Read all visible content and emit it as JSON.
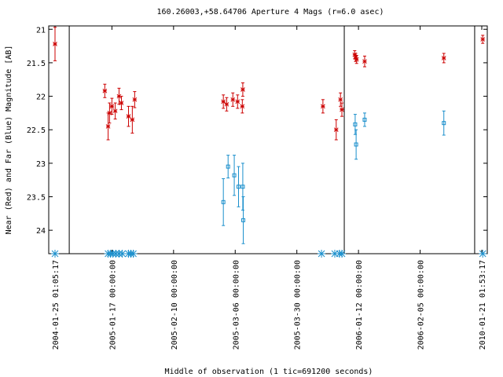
{
  "chart_data": {
    "type": "scatter",
    "title": "160.26003,+58.64706   Aperture 4 Mags (r=6.0 asec)",
    "xlabel": "Middle of observation (1 tic=691200 seconds)",
    "ylabel": "Near (Red) and Far (Blue) Magnitude [AB]",
    "ylim": [
      24.35,
      20.95
    ],
    "y_inverted": true,
    "yticks": [
      21,
      21.5,
      22,
      22.5,
      23,
      23.5,
      24
    ],
    "ytick_labels": [
      "21",
      "21.5",
      "22",
      "22.5",
      "23",
      "23.5",
      "24"
    ],
    "xtick_labels": [
      "2004-01-25 01:05:17",
      "2005-01-17 00:00:00",
      "2005-02-10 00:00:00",
      "2005-03-06 00:00:00",
      "2005-03-30 00:00:00",
      "2006-01-12 00:00:00",
      "2006-02-05 00:00:00",
      "2010-01-21 01:53:17"
    ],
    "xtick_index": [
      0,
      1.2,
      2.5,
      3.8,
      5.1,
      6.4,
      7.7,
      9.0
    ],
    "panel_breaks": [
      0.3,
      6.1,
      8.85
    ],
    "grid": false,
    "legend": "none",
    "colors": {
      "near": "#cc0000",
      "far": "#1a8fcc",
      "frame": "#000000"
    },
    "series": [
      {
        "name": "Near (Red)",
        "marker": "x",
        "points": [
          {
            "x": 0.0,
            "y": 21.22,
            "err": 0.25
          },
          {
            "x": 1.05,
            "y": 21.92,
            "err": 0.1
          },
          {
            "x": 1.12,
            "y": 22.45,
            "err": 0.2
          },
          {
            "x": 1.15,
            "y": 22.25,
            "err": 0.15
          },
          {
            "x": 1.2,
            "y": 22.15,
            "err": 0.12
          },
          {
            "x": 1.27,
            "y": 22.22,
            "err": 0.12
          },
          {
            "x": 1.35,
            "y": 22.0,
            "err": 0.12
          },
          {
            "x": 1.4,
            "y": 22.1,
            "err": 0.1
          },
          {
            "x": 1.55,
            "y": 22.3,
            "err": 0.15
          },
          {
            "x": 1.63,
            "y": 22.35,
            "err": 0.2
          },
          {
            "x": 1.68,
            "y": 22.05,
            "err": 0.12
          },
          {
            "x": 3.55,
            "y": 22.08,
            "err": 0.1
          },
          {
            "x": 3.62,
            "y": 22.12,
            "err": 0.1
          },
          {
            "x": 3.75,
            "y": 22.05,
            "err": 0.1
          },
          {
            "x": 3.85,
            "y": 22.08,
            "err": 0.1
          },
          {
            "x": 3.95,
            "y": 22.15,
            "err": 0.1
          },
          {
            "x": 3.96,
            "y": 21.9,
            "err": 0.1
          },
          {
            "x": 5.65,
            "y": 22.15,
            "err": 0.1
          },
          {
            "x": 5.93,
            "y": 22.5,
            "err": 0.15
          },
          {
            "x": 6.02,
            "y": 22.05,
            "err": 0.1
          },
          {
            "x": 6.05,
            "y": 22.2,
            "err": 0.1
          },
          {
            "x": 6.32,
            "y": 21.38,
            "err": 0.06
          },
          {
            "x": 6.34,
            "y": 21.42,
            "err": 0.06
          },
          {
            "x": 6.36,
            "y": 21.45,
            "err": 0.06
          },
          {
            "x": 6.53,
            "y": 21.48,
            "err": 0.08
          },
          {
            "x": 8.2,
            "y": 21.43,
            "err": 0.07
          },
          {
            "x": 9.02,
            "y": 21.15,
            "err": 0.06
          }
        ]
      },
      {
        "name": "Far (Blue)",
        "marker": "square",
        "points": [
          {
            "x": 3.55,
            "y": 23.58,
            "err": 0.35
          },
          {
            "x": 3.65,
            "y": 23.05,
            "err": 0.17
          },
          {
            "x": 3.78,
            "y": 23.18,
            "err": 0.3
          },
          {
            "x": 3.87,
            "y": 23.35,
            "err": 0.3
          },
          {
            "x": 3.96,
            "y": 23.35,
            "err": 0.35
          },
          {
            "x": 3.97,
            "y": 23.85,
            "err": 0.35
          },
          {
            "x": 6.33,
            "y": 22.42,
            "err": 0.15
          },
          {
            "x": 6.35,
            "y": 22.72,
            "err": 0.22
          },
          {
            "x": 6.53,
            "y": 22.35,
            "err": 0.1
          },
          {
            "x": 8.2,
            "y": 22.4,
            "err": 0.18
          }
        ]
      }
    ],
    "observation_markers_x": [
      0.0,
      1.12,
      1.17,
      1.22,
      1.28,
      1.35,
      1.42,
      1.55,
      1.6,
      1.65,
      5.62,
      5.9,
      6.0,
      6.05,
      9.02
    ]
  }
}
